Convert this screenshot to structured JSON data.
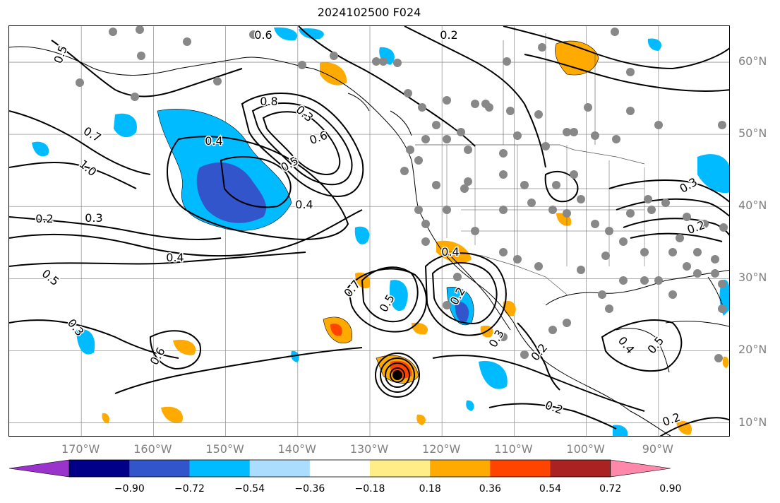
{
  "title": "2024102500 F024",
  "lat_labels": [
    {
      "text": "60°N",
      "lat": 60
    },
    {
      "text": "50°N",
      "lat": 50
    },
    {
      "text": "40°N",
      "lat": 40
    },
    {
      "text": "30°N",
      "lat": 30
    },
    {
      "text": "20°N",
      "lat": 20
    },
    {
      "text": "10°N",
      "lat": 10
    }
  ],
  "lon_labels": [
    {
      "text": "170°W",
      "lon": -170
    },
    {
      "text": "160°W",
      "lon": -160
    },
    {
      "text": "150°W",
      "lon": -150
    },
    {
      "text": "140°W",
      "lon": -140
    },
    {
      "text": "130°W",
      "lon": -130
    },
    {
      "text": "120°W",
      "lon": -120
    },
    {
      "text": "110°W",
      "lon": -110
    },
    {
      "text": "100°W",
      "lon": -100
    },
    {
      "text": "90°W",
      "lon": -90
    }
  ],
  "colorbar": {
    "colors": [
      "#9933cc",
      "#000088",
      "#3355cc",
      "#00bbff",
      "#aaddff",
      "#ffffff",
      "#ffee88",
      "#ffaa00",
      "#ff4400",
      "#aa2222",
      "#ff88aa"
    ],
    "ticks": [
      "−0.90",
      "−0.72",
      "−0.54",
      "−0.36",
      "−0.18",
      "0.18",
      "0.36",
      "0.54",
      "0.72",
      "0.90"
    ]
  },
  "contour_labels": [
    "0.5",
    "0.6",
    "0.8",
    "0.2",
    "0.4",
    "0.7",
    "1.0",
    "0.3",
    "0.6",
    "0.5",
    "0.4",
    "0.3",
    "0.2",
    "0.4",
    "0.5",
    "0.3",
    "0.6",
    "0.7",
    "0.5",
    "0.4",
    "0.2",
    "0.3",
    "0.2",
    "0.4",
    "0.5",
    "0.2",
    "0.2",
    "0.3",
    "0.2"
  ]
}
